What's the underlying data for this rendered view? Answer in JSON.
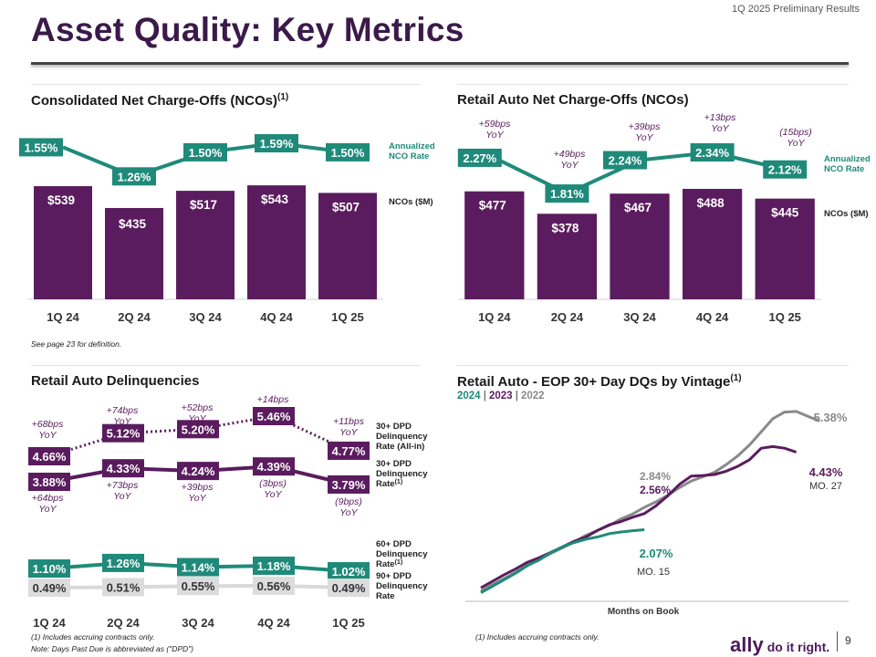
{
  "header": {
    "title": "Asset Quality: Key Metrics",
    "report_label": "1Q 2025 Preliminary Results",
    "page_number": "9"
  },
  "logo": {
    "brand": "ally",
    "tagline": "do it right."
  },
  "colors": {
    "purple": "#5a1c5e",
    "teal": "#1f8a7a",
    "gray_bar": "#d9d9d9",
    "gray_line": "#8a8a8a",
    "title": "#3b1a4a"
  },
  "footnotes": {
    "page_def": "See page 23 for definition.",
    "accruing_left": "(1) Includes accruing contracts only.",
    "dpd_note": "Note: Days Past Due is abbreviated as (\"DPD\")",
    "accruing_right": "(1) Includes accruing contracts only."
  },
  "chart_data": [
    {
      "id": "consolidated-nco",
      "type": "bar",
      "title": "Consolidated Net Charge-Offs (NCOs)",
      "title_sup": "(1)",
      "categories": [
        "1Q 24",
        "2Q 24",
        "3Q 24",
        "4Q 24",
        "1Q 25"
      ],
      "series": [
        {
          "name": "NCOs ($M)",
          "values": [
            539,
            435,
            517,
            543,
            507
          ],
          "labels": [
            "$539",
            "$435",
            "$517",
            "$543",
            "$507"
          ]
        },
        {
          "name": "Annualized NCO Rate",
          "values": [
            1.55,
            1.26,
            1.5,
            1.59,
            1.5
          ],
          "labels": [
            "1.55%",
            "1.26%",
            "1.50%",
            "1.59%",
            "1.50%"
          ]
        }
      ],
      "legend": {
        "rate_line1": "Annualized",
        "rate_line2": "NCO Rate",
        "bars": "NCOs ($M)"
      }
    },
    {
      "id": "retail-auto-nco",
      "type": "bar",
      "title": "Retail Auto Net Charge-Offs (NCOs)",
      "categories": [
        "1Q 24",
        "2Q 24",
        "3Q 24",
        "4Q 24",
        "1Q 25"
      ],
      "series": [
        {
          "name": "NCOs ($M)",
          "values": [
            477,
            378,
            467,
            488,
            445
          ],
          "labels": [
            "$477",
            "$378",
            "$467",
            "$488",
            "$445"
          ]
        },
        {
          "name": "Annualized NCO Rate",
          "values": [
            2.27,
            1.81,
            2.24,
            2.34,
            2.12
          ],
          "labels": [
            "2.27%",
            "1.81%",
            "2.24%",
            "2.34%",
            "2.12%"
          ]
        }
      ],
      "yoy": [
        {
          "l1": "+59bps",
          "l2": "YoY"
        },
        {
          "l1": "+49bps",
          "l2": "YoY"
        },
        {
          "l1": "+39bps",
          "l2": "YoY"
        },
        {
          "l1": "+13bps",
          "l2": "YoY"
        },
        {
          "l1": "(15bps)",
          "l2": "YoY"
        }
      ],
      "legend": {
        "rate_line1": "Annualized",
        "rate_line2": "NCO Rate",
        "bars": "NCOs ($M)"
      }
    },
    {
      "id": "retail-auto-delinquencies",
      "type": "line",
      "title": "Retail Auto Delinquencies",
      "categories": [
        "1Q 24",
        "2Q 24",
        "3Q 24",
        "4Q 24",
        "1Q 25"
      ],
      "series": [
        {
          "name": "30+ DPD Delinquency Rate (All-in)",
          "values": [
            4.66,
            5.12,
            5.2,
            5.46,
            4.77
          ],
          "labels": [
            "4.66%",
            "5.12%",
            "5.20%",
            "5.46%",
            "4.77%"
          ],
          "yoy": [
            {
              "l1": "+68bps",
              "l2": "YoY"
            },
            {
              "l1": "+74bps",
              "l2": "YoY"
            },
            {
              "l1": "+52bps",
              "l2": "YoY"
            },
            {
              "l1": "+14bps",
              "l2": "YoY"
            },
            {
              "l1": "+11bps",
              "l2": "YoY"
            }
          ]
        },
        {
          "name": "30+ DPD Delinquency Rate",
          "values": [
            3.88,
            4.33,
            4.24,
            4.39,
            3.79
          ],
          "labels": [
            "3.88%",
            "4.33%",
            "4.24%",
            "4.39%",
            "3.79%"
          ],
          "yoy": [
            {
              "l1": "+64bps",
              "l2": "YoY"
            },
            {
              "l1": "+73bps",
              "l2": "YoY"
            },
            {
              "l1": "+39bps",
              "l2": "YoY"
            },
            {
              "l1": "(3bps)",
              "l2": "YoY"
            },
            {
              "l1": "(9bps)",
              "l2": "YoY"
            }
          ]
        },
        {
          "name": "60+ DPD Delinquency Rate",
          "values": [
            1.1,
            1.26,
            1.14,
            1.18,
            1.02
          ],
          "labels": [
            "1.10%",
            "1.26%",
            "1.14%",
            "1.18%",
            "1.02%"
          ]
        },
        {
          "name": "90+ DPD Delinquency Rate",
          "values": [
            0.49,
            0.51,
            0.55,
            0.56,
            0.49
          ],
          "labels": [
            "0.49%",
            "0.51%",
            "0.55%",
            "0.56%",
            "0.49%"
          ]
        }
      ],
      "legend": {
        "dpd30_all": [
          "30+ DPD",
          "Delinquency",
          "Rate (All-in)"
        ],
        "dpd30": [
          "30+ DPD",
          "Delinquency",
          "Rate"
        ],
        "dpd60": [
          "60+ DPD",
          "Delinquency",
          "Rate"
        ],
        "dpd90": [
          "90+ DPD",
          "Delinquency",
          "Rate"
        ],
        "sup": "(1)"
      }
    },
    {
      "id": "vintage-dq",
      "type": "line",
      "title": "Retail Auto - EOP 30+ Day DQs by Vintage",
      "title_sup": "(1)",
      "xlabel": "Months on Book",
      "legend": {
        "y2024": "2024",
        "y2023": "2023",
        "y2022": "2022",
        "sep": "|"
      },
      "series": [
        {
          "name": "2022",
          "end_label": "5.38%",
          "mo_label": "",
          "values": [
            0.2,
            0.4,
            0.58,
            0.78,
            0.98,
            1.16,
            1.35,
            1.52,
            1.7,
            1.9,
            2.05,
            2.2,
            2.4,
            2.55,
            2.75,
            2.92,
            3.12,
            3.35,
            3.55,
            3.68,
            3.82,
            4.05,
            4.32,
            4.65,
            5.05,
            5.45,
            5.65,
            5.67,
            5.52,
            5.38
          ]
        },
        {
          "name": "2023",
          "end_label": "4.43%",
          "mo_label": "MO. 27",
          "values": [
            0.3,
            0.5,
            0.7,
            0.88,
            1.08,
            1.22,
            1.38,
            1.55,
            1.72,
            1.85,
            2.05,
            2.22,
            2.32,
            2.45,
            2.56,
            2.8,
            3.1,
            3.45,
            3.7,
            3.72,
            3.75,
            3.85,
            4.0,
            4.2,
            4.55,
            4.6,
            4.55,
            4.43
          ]
        },
        {
          "name": "2024",
          "end_label": "2.07%",
          "mo_label": "MO. 15",
          "values": [
            0.15,
            0.35,
            0.55,
            0.75,
            0.98,
            1.15,
            1.38,
            1.55,
            1.68,
            1.78,
            1.85,
            1.95,
            2.0,
            2.04,
            2.07
          ]
        }
      ],
      "annotations": [
        {
          "text": "2.84%"
        },
        {
          "text": "2.56%"
        }
      ]
    }
  ]
}
